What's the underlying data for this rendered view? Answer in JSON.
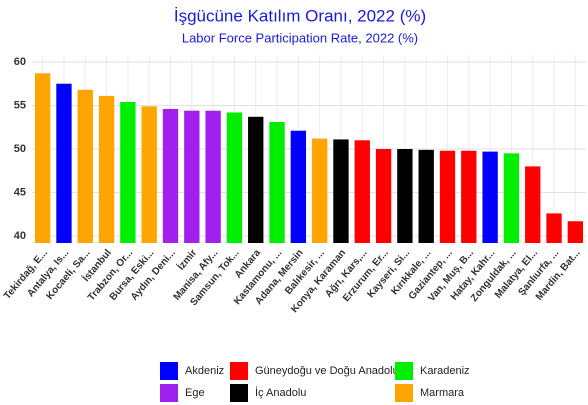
{
  "chart_data": {
    "type": "bar",
    "title": "İşgücüne Katılım Oranı, 2022 (%)",
    "subtitle": "Labor Force Participation Rate, 2022 (%)",
    "categories": [
      "Tekirdağ, E...",
      "Antalya, Is...",
      "Kocaeli, Sa...",
      "İstanbul",
      "Trabzon, Or...",
      "Bursa, Eski...",
      "Aydın, Deni...",
      "İzmir",
      "Manisa, Afy...",
      "Samsun, Tok...",
      "Ankara",
      "Kastamonu, ...",
      "Adana, Mersin",
      "Balıkesir, ...",
      "Konya, Karaman",
      "Ağrı, Kars,...",
      "Erzurum, Er...",
      "Kayseri, Si...",
      "Kırıkkale, ...",
      "Gaziantep, ...",
      "Van, Muş, B...",
      "Hatay, Kahr...",
      "Zonguldak, ...",
      "Malatya, El...",
      "Şanlıurfa, ...",
      "Mardin, Bat..."
    ],
    "values": [
      58.7,
      57.5,
      56.8,
      56.1,
      55.4,
      54.9,
      54.6,
      54.4,
      54.4,
      54.2,
      53.7,
      53.1,
      52.1,
      51.2,
      51.1,
      51.0,
      50.0,
      50.0,
      49.9,
      49.8,
      49.8,
      49.7,
      49.5,
      48.0,
      42.6,
      41.7
    ],
    "colors": [
      "#ffa500",
      "#0000ff",
      "#ffa500",
      "#ffa500",
      "#00ee00",
      "#ffa500",
      "#a020f0",
      "#a020f0",
      "#a020f0",
      "#00ee00",
      "#000000",
      "#00ee00",
      "#0000ff",
      "#ffa500",
      "#000000",
      "#ff0000",
      "#ff0000",
      "#000000",
      "#000000",
      "#ff0000",
      "#ff0000",
      "#0000ff",
      "#00ee00",
      "#ff0000",
      "#ff0000",
      "#ff0000"
    ],
    "legend": [
      {
        "name": "Akdeniz",
        "color": "#0000ff"
      },
      {
        "name": "Güneydoğu ve Doğu Anadolu",
        "color": "#ff0000"
      },
      {
        "name": "Karadeniz",
        "color": "#00ee00"
      },
      {
        "name": "Ege",
        "color": "#a020f0"
      },
      {
        "name": "İç Anadolu",
        "color": "#000000"
      },
      {
        "name": "Marmara",
        "color": "#ffa500"
      }
    ],
    "ylim": [
      39.2,
      60.8
    ],
    "yticks": [
      40,
      45,
      50,
      55,
      60
    ],
    "grid": true
  }
}
